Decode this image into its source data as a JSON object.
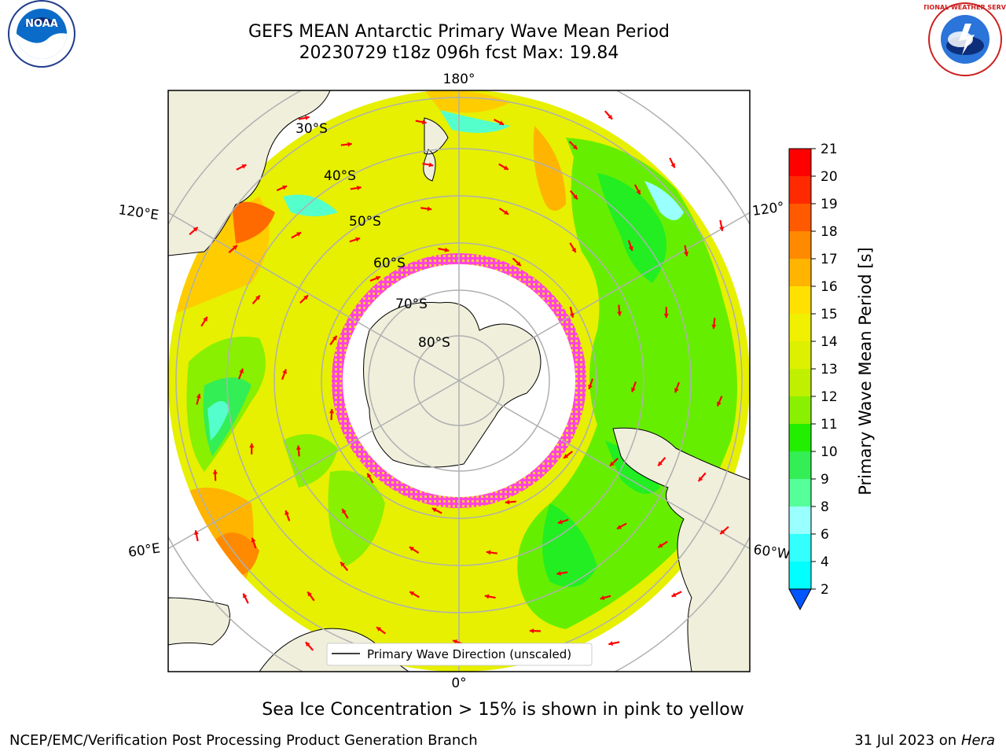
{
  "title": {
    "line1": "GEFS MEAN Antarctic Primary Wave Mean Period",
    "line2": "20230729 t18z 096h fcst   Max: 19.84"
  },
  "logos": {
    "left": "NOAA",
    "right": "NATIONAL WEATHER SERVICE"
  },
  "map": {
    "lon_labels": {
      "top": "180°",
      "bottom": "0°",
      "upper_left": "120°E",
      "lower_left": "60°E",
      "upper_right": "120°",
      "lower_right": "60°W"
    },
    "lat_labels": [
      "30°S",
      "40°S",
      "50°S",
      "60°S",
      "70°S",
      "80°S"
    ],
    "legend_label": "Primary Wave Direction (unscaled)",
    "colors": {
      "ocean_green": "#33ee33",
      "ocean_yellow": "#eeee00",
      "ice_edge": "#ff33cc",
      "land": "#efefdc",
      "arrow": "#ff0000"
    }
  },
  "colorbar": {
    "label": "Primary Wave Mean Period [s]",
    "ticks": [
      "21",
      "20",
      "19",
      "18",
      "17",
      "16",
      "15",
      "14",
      "13",
      "12",
      "11",
      "10",
      "9",
      "8",
      "6",
      "4",
      "2"
    ],
    "colors": [
      "#ff0000",
      "#ff2a00",
      "#ff5a00",
      "#ff8a00",
      "#ffb400",
      "#ffe000",
      "#f0f000",
      "#dcf000",
      "#c0f000",
      "#88f000",
      "#22ee00",
      "#33ee55",
      "#55ff99",
      "#99ffff",
      "#33ffff",
      "#00ffff",
      "#0099ff",
      "#0055ff"
    ]
  },
  "caption": "Sea Ice Concentration > 15% is shown in pink to yellow",
  "footer": {
    "left": "NCEP/EMC/Verification Post Processing Product Generation Branch",
    "right_date": "31 Jul 2023 on",
    "right_machine": "Hera"
  }
}
